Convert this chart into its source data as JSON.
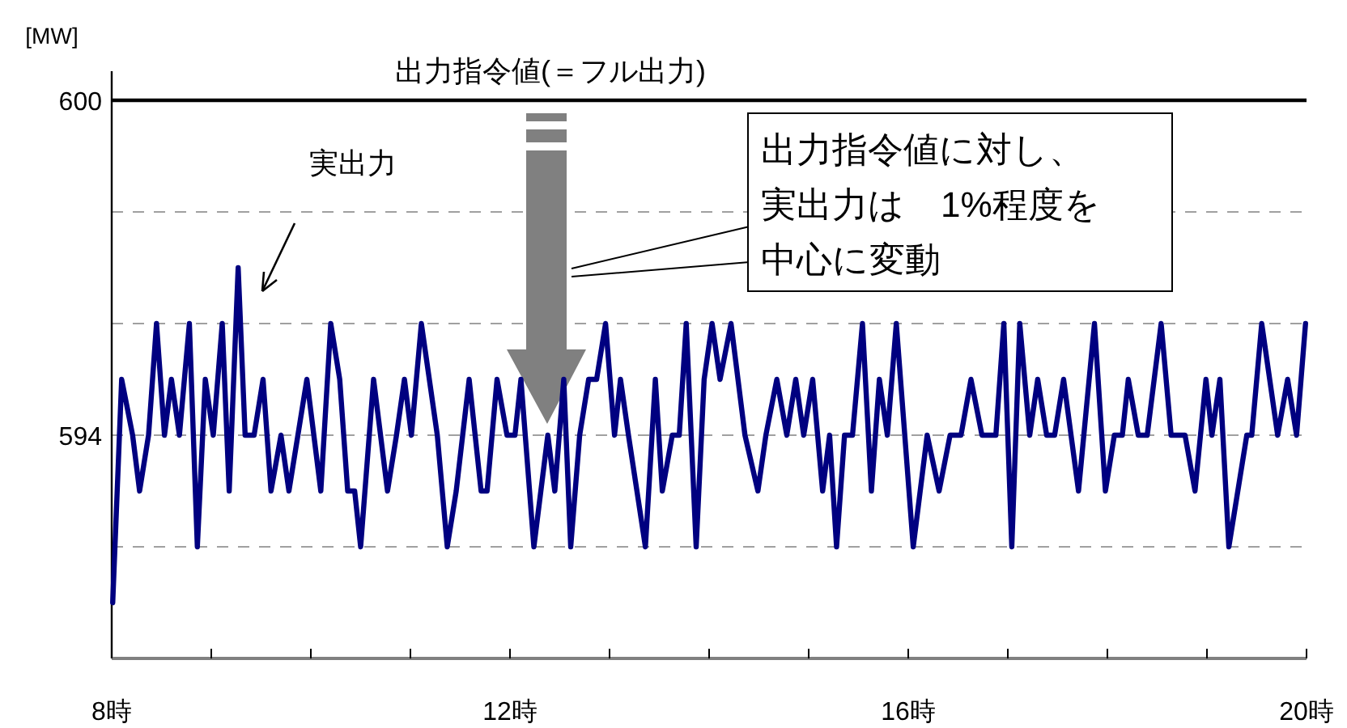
{
  "chart_data": {
    "type": "line",
    "ylabel": "[MW]",
    "xlim": [
      8,
      20
    ],
    "xticks": [
      {
        "value": 8,
        "label": "8時"
      },
      {
        "value": 9,
        "label": null
      },
      {
        "value": 10,
        "label": null
      },
      {
        "value": 11,
        "label": null
      },
      {
        "value": 12,
        "label": "12時"
      },
      {
        "value": 13,
        "label": null
      },
      {
        "value": 14,
        "label": null
      },
      {
        "value": 15,
        "label": null
      },
      {
        "value": 16,
        "label": "16時"
      },
      {
        "value": 17,
        "label": null
      },
      {
        "value": 18,
        "label": null
      },
      {
        "value": 19,
        "label": null
      },
      {
        "value": 20,
        "label": "20時"
      }
    ],
    "ylim": [
      590,
      600
    ],
    "yticks": [
      {
        "value": 592,
        "label": null
      },
      594,
      {
        "value": 596,
        "label": null
      },
      {
        "value": 598,
        "label": null
      },
      600
    ],
    "grid": "y",
    "series": [
      {
        "color": "#000080",
        "x": [
          8.01,
          8.1,
          8.21,
          8.28,
          8.37,
          8.45,
          8.53,
          8.6,
          8.68,
          8.78,
          8.86,
          8.94,
          9.02,
          9.11,
          9.18,
          9.27,
          9.34,
          9.43,
          9.52,
          9.6,
          9.7,
          9.78,
          9.87,
          9.96,
          10.1,
          10.2,
          10.29,
          10.37,
          10.44,
          10.5,
          10.63,
          10.77,
          10.86,
          10.94,
          11.01,
          11.11,
          11.27,
          11.37,
          11.46,
          11.59,
          11.71,
          11.77,
          11.87,
          11.97,
          12.05,
          12.11,
          12.24,
          12.38,
          12.45,
          12.54,
          12.61,
          12.7,
          12.79,
          12.87,
          12.96,
          13.05,
          13.11,
          13.19,
          13.36,
          13.46,
          13.53,
          13.63,
          13.7,
          13.77,
          13.87,
          13.95,
          14.03,
          14.11,
          14.22,
          14.36,
          14.49,
          14.57,
          14.68,
          14.78,
          14.87,
          14.95,
          15.04,
          15.14,
          15.21,
          15.28,
          15.36,
          15.44,
          15.54,
          15.63,
          15.71,
          15.79,
          15.88,
          16.05,
          16.19,
          16.31,
          16.42,
          16.53,
          16.63,
          16.74,
          16.88,
          16.96,
          17.04,
          17.12,
          17.22,
          17.3,
          17.39,
          17.47,
          17.56,
          17.71,
          17.87,
          17.98,
          18.07,
          18.15,
          18.21,
          18.31,
          18.4,
          18.54,
          18.64,
          18.78,
          18.88,
          18.99,
          19.05,
          19.13,
          19.22,
          19.4,
          19.45,
          19.55,
          19.71,
          19.81,
          19.9,
          19.99
        ],
        "values": [
          591,
          595,
          594,
          593,
          594,
          596,
          594,
          595,
          594,
          596,
          592,
          595,
          594,
          596,
          593,
          597,
          594,
          594,
          595,
          593,
          594,
          593,
          594,
          595,
          593,
          596,
          595,
          593,
          593,
          592,
          595,
          593,
          594,
          595,
          594,
          596,
          594,
          592,
          593,
          595,
          593,
          593,
          595,
          594,
          594,
          595,
          592,
          594,
          593,
          595,
          592,
          594,
          595,
          595,
          596,
          594,
          595,
          594,
          592,
          595,
          593,
          594,
          594,
          596,
          592,
          595,
          596,
          595,
          596,
          594,
          593,
          594,
          595,
          594,
          595,
          594,
          595,
          593,
          594,
          592,
          594,
          594,
          596,
          593,
          595,
          594,
          596,
          592,
          594,
          593,
          594,
          594,
          595,
          594,
          594,
          596,
          592,
          596,
          594,
          595,
          594,
          594,
          595,
          593,
          596,
          593,
          594,
          594,
          595,
          594,
          594,
          596,
          594,
          594,
          593,
          595,
          594,
          595,
          592,
          594,
          594,
          596,
          594,
          595,
          594,
          596
        ]
      }
    ],
    "ref_lines": [
      {
        "axis": "y",
        "value": 600,
        "label": "出力指令値(＝フル出力)",
        "color": "#000000"
      }
    ],
    "annotations": [
      "実出力",
      "出力指令値に対し、実出力は　1%程度を中心に変動"
    ]
  }
}
